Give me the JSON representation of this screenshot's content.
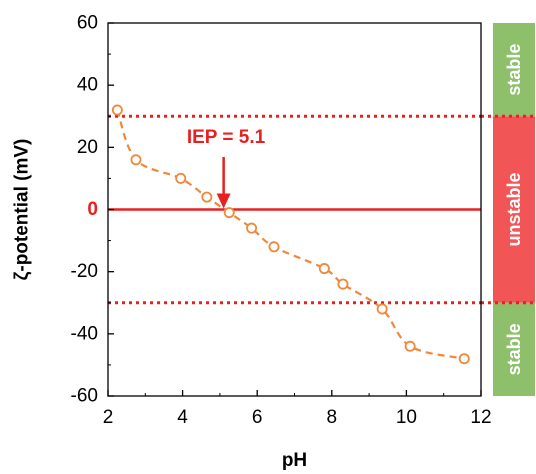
{
  "chart_data": {
    "type": "scatter",
    "xlabel": "pH",
    "ylabel": "ζ-potential (mV)",
    "xlim": [
      2,
      12
    ],
    "ylim": [
      -60,
      60
    ],
    "xticks": [
      2,
      4,
      6,
      8,
      10,
      12
    ],
    "yticks": [
      60,
      40,
      20,
      0,
      -20,
      -40,
      -60
    ],
    "zero_tick_label": "0",
    "grid": false,
    "series": [
      {
        "marker": "open-circle",
        "color": "#f0883c",
        "trend_line": "dashed",
        "points": [
          {
            "x": 2.25,
            "y": 32
          },
          {
            "x": 2.75,
            "y": 16
          },
          {
            "x": 3.95,
            "y": 10
          },
          {
            "x": 4.65,
            "y": 4
          },
          {
            "x": 5.25,
            "y": -1
          },
          {
            "x": 5.85,
            "y": -6
          },
          {
            "x": 6.45,
            "y": -12
          },
          {
            "x": 7.8,
            "y": -19
          },
          {
            "x": 8.3,
            "y": -24
          },
          {
            "x": 9.35,
            "y": -32
          },
          {
            "x": 10.1,
            "y": -44
          },
          {
            "x": 11.55,
            "y": -48
          }
        ]
      }
    ],
    "reference_lines": [
      {
        "y": 30,
        "style": "dotted",
        "color": "#e82020"
      },
      {
        "y": 0,
        "style": "solid",
        "color": "#e82020"
      },
      {
        "y": -30,
        "style": "dotted",
        "color": "#e82020"
      }
    ],
    "annotation": {
      "text": "IEP = 5.1",
      "x": 5.1,
      "y": 0,
      "color": "#e82020"
    },
    "stability_bands": [
      {
        "label": "stable",
        "from": 30,
        "to": 60,
        "color": "#8ec06c"
      },
      {
        "label": "unstable",
        "from": -30,
        "to": 30,
        "color": "#f25555"
      },
      {
        "label": "stable",
        "from": -60,
        "to": -30,
        "color": "#8ec06c"
      }
    ]
  }
}
